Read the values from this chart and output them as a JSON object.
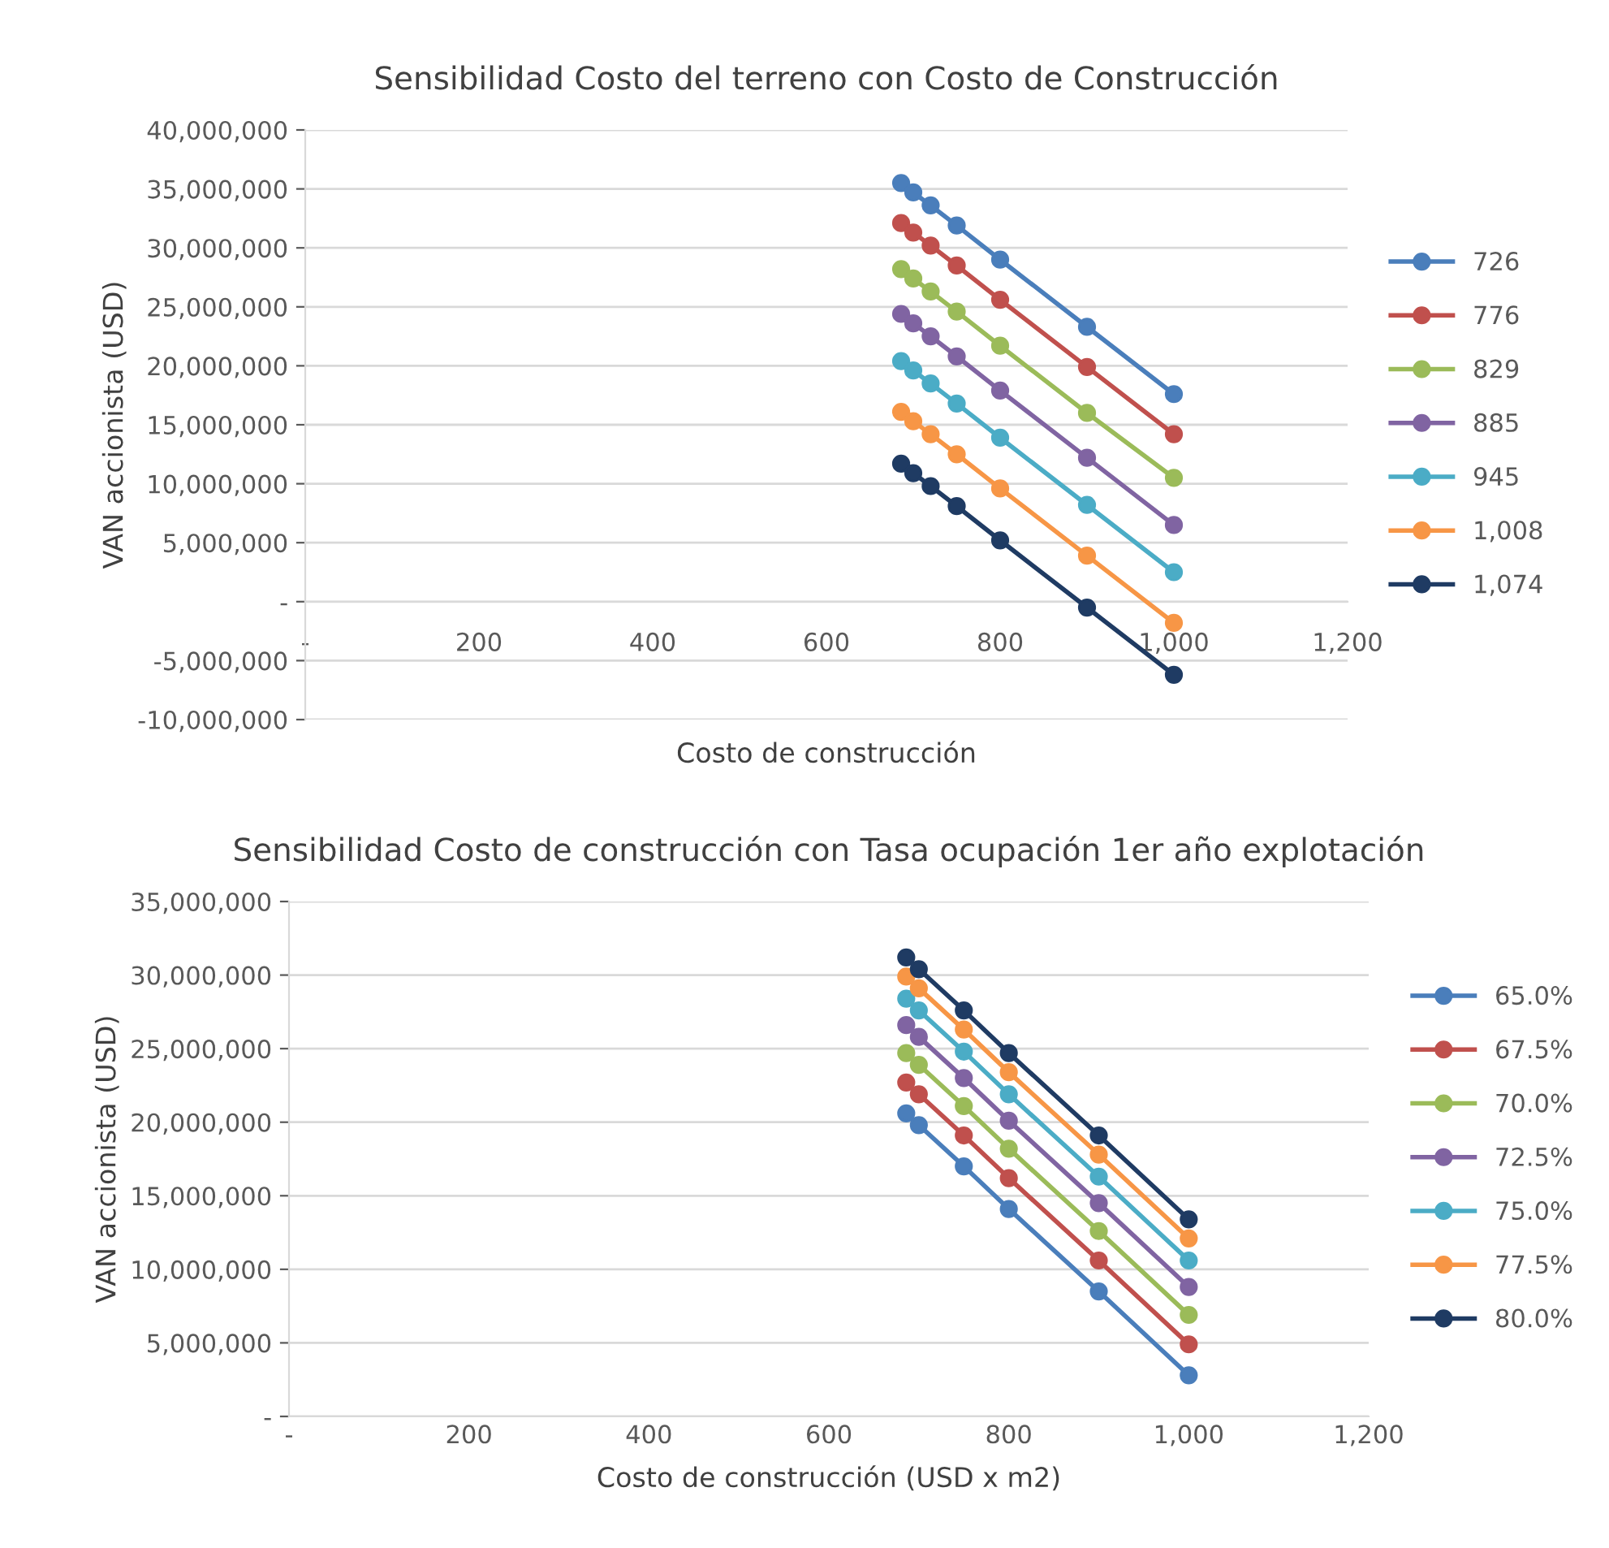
{
  "chart_data": [
    {
      "type": "line",
      "title": "Sensibilidad Costo del terreno con Costo de Construcción",
      "xlabel": "Costo de construcción",
      "ylabel": "VAN accionista (USD)",
      "x": [
        686,
        700,
        720,
        750,
        800,
        900,
        1000
      ],
      "series": [
        {
          "name": "726",
          "color": "#4a7ebb",
          "values": [
            35500000,
            34700000,
            33600000,
            31900000,
            29000000,
            23300000,
            17600000
          ]
        },
        {
          "name": "776",
          "color": "#c0504d",
          "values": [
            32100000,
            31300000,
            30200000,
            28500000,
            25600000,
            19900000,
            14200000
          ]
        },
        {
          "name": "829",
          "color": "#9bbb59",
          "values": [
            28200000,
            27400000,
            26300000,
            24600000,
            21700000,
            16000000,
            10500000
          ]
        },
        {
          "name": "885",
          "color": "#8064a2",
          "values": [
            24400000,
            23600000,
            22500000,
            20800000,
            17900000,
            12200000,
            6500000
          ]
        },
        {
          "name": "945",
          "color": "#4bacc6",
          "values": [
            20400000,
            19600000,
            18500000,
            16800000,
            13900000,
            8200000,
            2500000
          ]
        },
        {
          "name": "1,008",
          "color": "#f79646",
          "values": [
            16100000,
            15300000,
            14200000,
            12500000,
            9600000,
            3900000,
            -1800000
          ]
        },
        {
          "name": "1,074",
          "color": "#1f3b63",
          "values": [
            11700000,
            10900000,
            9800000,
            8100000,
            5200000,
            -500000,
            -6200000
          ]
        }
      ],
      "xlim": [
        0,
        1200
      ],
      "ylim": [
        -10000000,
        40000000
      ],
      "xticks": [
        {
          "value": 0,
          "label": "-"
        },
        200,
        400,
        600,
        800,
        {
          "value": 1000,
          "label": "1,000"
        },
        {
          "value": 1200,
          "label": "1,200"
        }
      ],
      "yticks": [
        {
          "value": -10000000,
          "label": "-10,000,000"
        },
        {
          "value": -5000000,
          "label": "-5,000,000"
        },
        {
          "value": 0,
          "label": "-"
        },
        {
          "value": 5000000,
          "label": "5,000,000"
        },
        {
          "value": 10000000,
          "label": "10,000,000"
        },
        {
          "value": 15000000,
          "label": "15,000,000"
        },
        {
          "value": 20000000,
          "label": "20,000,000"
        },
        {
          "value": 25000000,
          "label": "25,000,000"
        },
        {
          "value": 30000000,
          "label": "30,000,000"
        },
        {
          "value": 35000000,
          "label": "35,000,000"
        },
        {
          "value": 40000000,
          "label": "40,000,000"
        }
      ],
      "grid": "y",
      "legend": "right",
      "marker": "circle",
      "line_style": "solid"
    },
    {
      "type": "line",
      "title": "Sensibilidad Costo de construcción con Tasa ocupación 1er año explotación",
      "xlabel": "Costo de construcción (USD x m2)",
      "ylabel": "VAN accionista (USD)",
      "x": [
        686,
        700,
        750,
        800,
        900,
        1000
      ],
      "series": [
        {
          "name": "65.0%",
          "color": "#4a7ebb",
          "values": [
            20600000,
            19800000,
            17000000,
            14100000,
            8500000,
            2800000
          ]
        },
        {
          "name": "67.5%",
          "color": "#c0504d",
          "values": [
            22700000,
            21900000,
            19100000,
            16200000,
            10600000,
            4900000
          ]
        },
        {
          "name": "70.0%",
          "color": "#9bbb59",
          "values": [
            24700000,
            23900000,
            21100000,
            18200000,
            12600000,
            6900000
          ]
        },
        {
          "name": "72.5%",
          "color": "#8064a2",
          "values": [
            26600000,
            25800000,
            23000000,
            20100000,
            14500000,
            8800000
          ]
        },
        {
          "name": "75.0%",
          "color": "#4bacc6",
          "values": [
            28400000,
            27600000,
            24800000,
            21900000,
            16300000,
            10600000
          ]
        },
        {
          "name": "77.5%",
          "color": "#f79646",
          "values": [
            29900000,
            29100000,
            26300000,
            23400000,
            17800000,
            12100000
          ]
        },
        {
          "name": "80.0%",
          "color": "#1f3b63",
          "values": [
            31200000,
            30400000,
            27600000,
            24700000,
            19100000,
            13400000
          ]
        }
      ],
      "xlim": [
        0,
        1200
      ],
      "ylim": [
        0,
        35000000
      ],
      "xticks": [
        {
          "value": 0,
          "label": "-"
        },
        200,
        400,
        600,
        800,
        {
          "value": 1000,
          "label": "1,000"
        },
        {
          "value": 1200,
          "label": "1,200"
        }
      ],
      "yticks": [
        {
          "value": 0,
          "label": "-"
        },
        {
          "value": 5000000,
          "label": "5,000,000"
        },
        {
          "value": 10000000,
          "label": "10,000,000"
        },
        {
          "value": 15000000,
          "label": "15,000,000"
        },
        {
          "value": 20000000,
          "label": "20,000,000"
        },
        {
          "value": 25000000,
          "label": "25,000,000"
        },
        {
          "value": 30000000,
          "label": "30,000,000"
        },
        {
          "value": 35000000,
          "label": "35,000,000"
        }
      ],
      "grid": "y",
      "legend": "right",
      "marker": "circle",
      "line_style": "solid"
    }
  ]
}
